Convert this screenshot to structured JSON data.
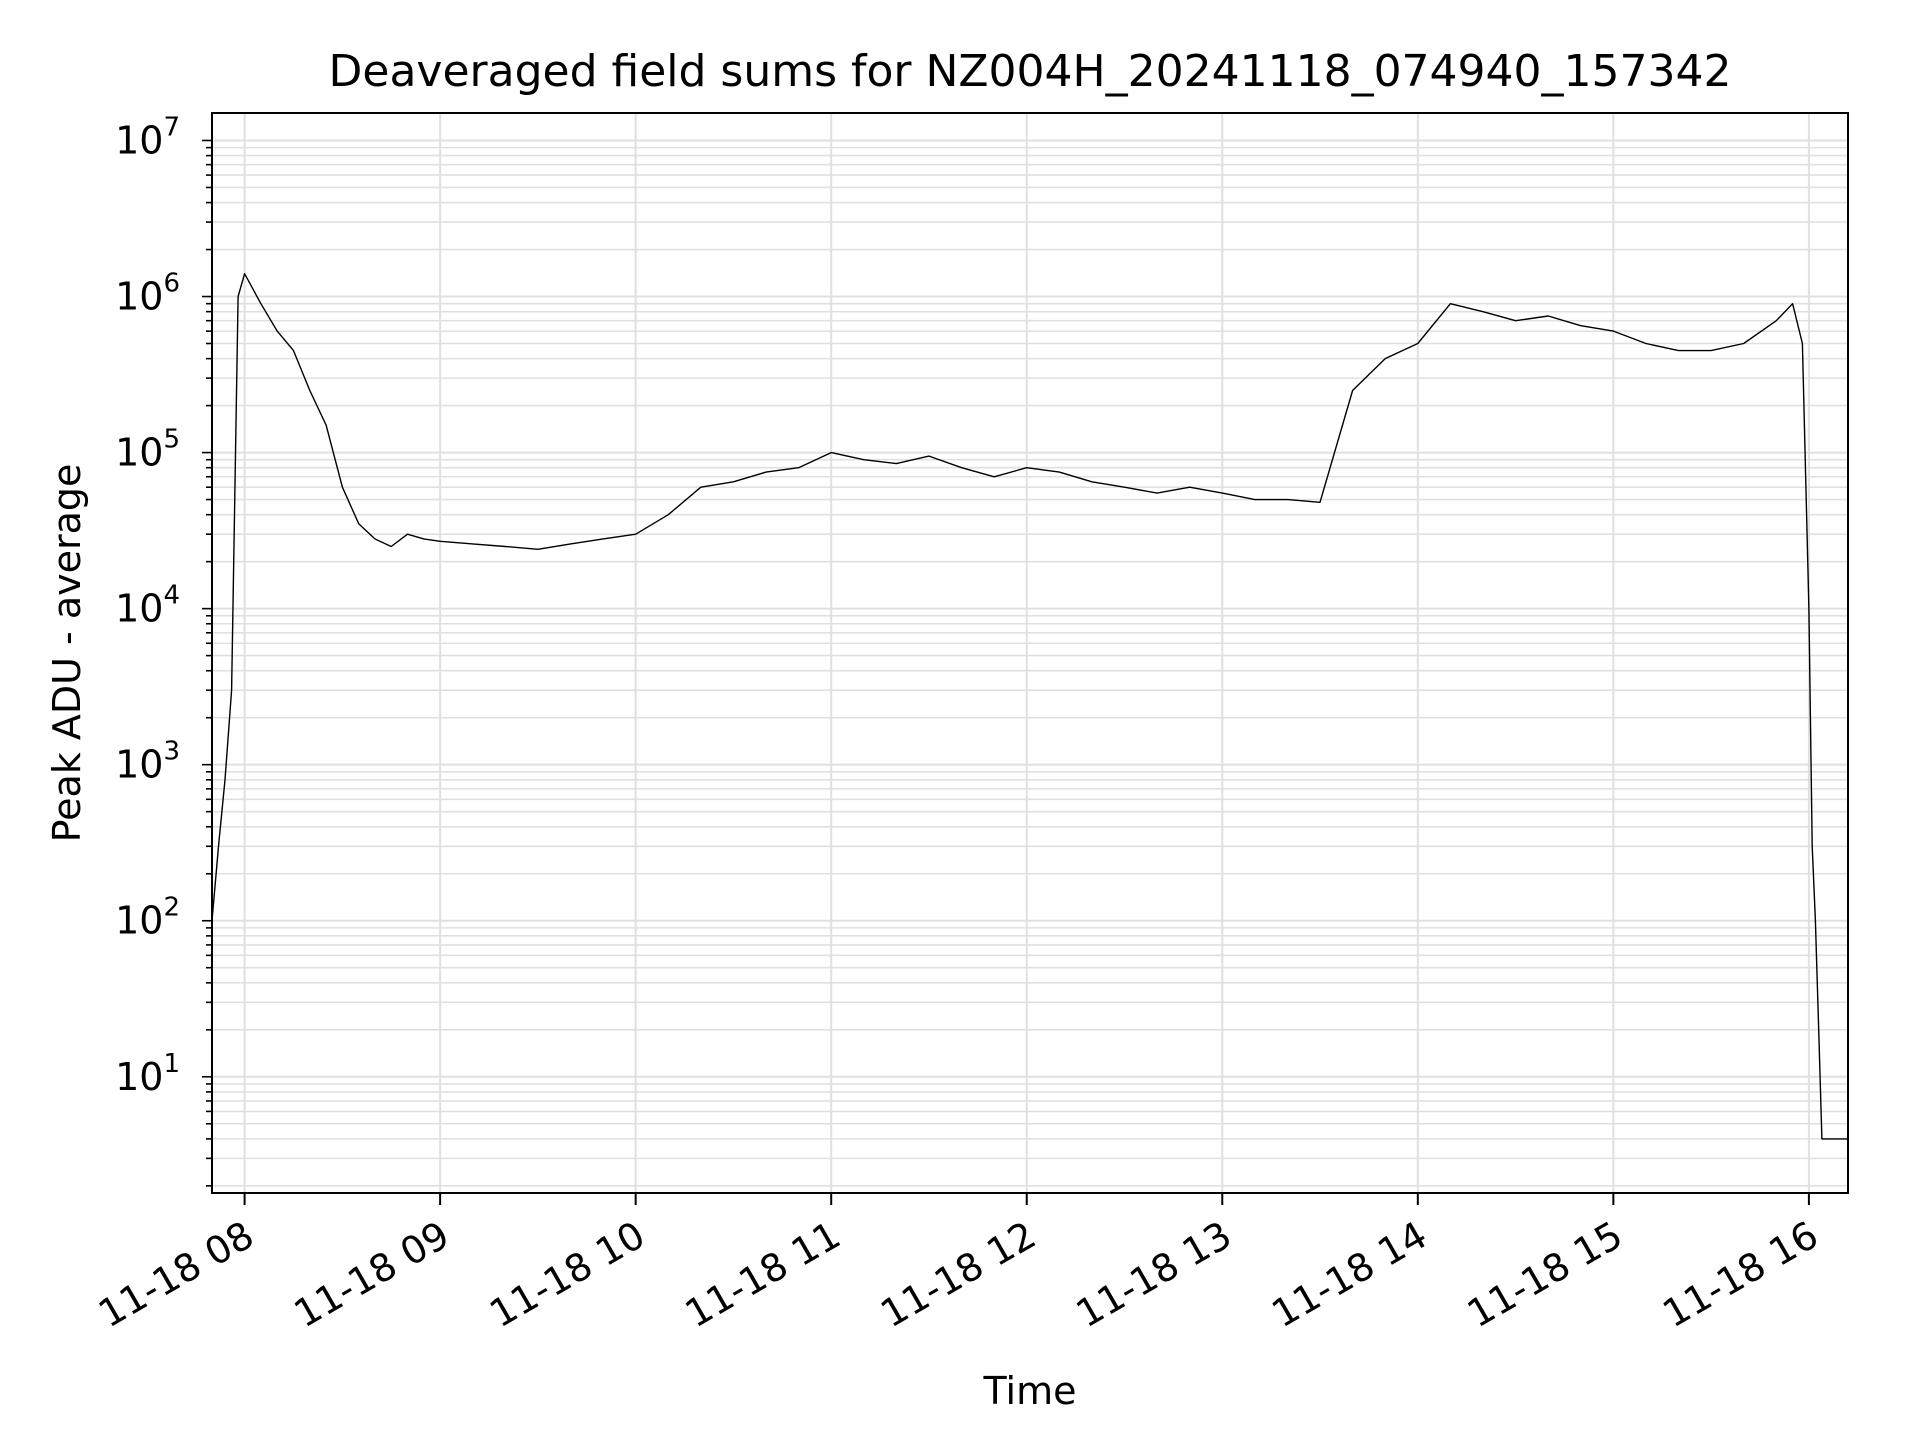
{
  "chart_data": {
    "type": "line",
    "title": "Deaveraged field sums for NZ004H_20241118_074940_157342",
    "xlabel": "Time",
    "ylabel": "Peak ADU - average",
    "yscale": "log",
    "ylim": [
      1.8,
      15000000
    ],
    "xlim": [
      "2024-11-18 07:50",
      "2024-11-18 16:12"
    ],
    "grid": "on (major and minor)",
    "line_color": "#000000",
    "grid_color": "#e0e0e0",
    "x_ticks": [
      {
        "value": "2024-11-18 08:00",
        "label": "11-18 08"
      },
      {
        "value": "2024-11-18 09:00",
        "label": "11-18 09"
      },
      {
        "value": "2024-11-18 10:00",
        "label": "11-18 10"
      },
      {
        "value": "2024-11-18 11:00",
        "label": "11-18 11"
      },
      {
        "value": "2024-11-18 12:00",
        "label": "11-18 12"
      },
      {
        "value": "2024-11-18 13:00",
        "label": "11-18 13"
      },
      {
        "value": "2024-11-18 14:00",
        "label": "11-18 14"
      },
      {
        "value": "2024-11-18 15:00",
        "label": "11-18 15"
      },
      {
        "value": "2024-11-18 16:00",
        "label": "11-18 16"
      }
    ],
    "y_ticks": [
      {
        "value": 10,
        "base": "10",
        "exp": "1"
      },
      {
        "value": 100,
        "base": "10",
        "exp": "2"
      },
      {
        "value": 1000,
        "base": "10",
        "exp": "3"
      },
      {
        "value": 10000,
        "base": "10",
        "exp": "4"
      },
      {
        "value": 100000,
        "base": "10",
        "exp": "5"
      },
      {
        "value": 1000000,
        "base": "10",
        "exp": "6"
      },
      {
        "value": 10000000,
        "base": "10",
        "exp": "7"
      }
    ],
    "series": [
      {
        "x": [
          "2024-11-18 07:50",
          "2024-11-18 07:52",
          "2024-11-18 07:54",
          "2024-11-18 07:56",
          "2024-11-18 07:58",
          "2024-11-18 08:00",
          "2024-11-18 08:05",
          "2024-11-18 08:10",
          "2024-11-18 08:15",
          "2024-11-18 08:20",
          "2024-11-18 08:25",
          "2024-11-18 08:30",
          "2024-11-18 08:35",
          "2024-11-18 08:40",
          "2024-11-18 08:45",
          "2024-11-18 08:50",
          "2024-11-18 08:55",
          "2024-11-18 09:00",
          "2024-11-18 09:10",
          "2024-11-18 09:20",
          "2024-11-18 09:30",
          "2024-11-18 09:40",
          "2024-11-18 09:50",
          "2024-11-18 10:00",
          "2024-11-18 10:10",
          "2024-11-18 10:20",
          "2024-11-18 10:30",
          "2024-11-18 10:40",
          "2024-11-18 10:50",
          "2024-11-18 11:00",
          "2024-11-18 11:10",
          "2024-11-18 11:20",
          "2024-11-18 11:30",
          "2024-11-18 11:40",
          "2024-11-18 11:50",
          "2024-11-18 12:00",
          "2024-11-18 12:10",
          "2024-11-18 12:20",
          "2024-11-18 12:30",
          "2024-11-18 12:40",
          "2024-11-18 12:50",
          "2024-11-18 13:00",
          "2024-11-18 13:10",
          "2024-11-18 13:20",
          "2024-11-18 13:30",
          "2024-11-18 13:40",
          "2024-11-18 13:50",
          "2024-11-18 14:00",
          "2024-11-18 14:10",
          "2024-11-18 14:20",
          "2024-11-18 14:30",
          "2024-11-18 14:40",
          "2024-11-18 14:50",
          "2024-11-18 15:00",
          "2024-11-18 15:10",
          "2024-11-18 15:20",
          "2024-11-18 15:30",
          "2024-11-18 15:40",
          "2024-11-18 15:50",
          "2024-11-18 15:55",
          "2024-11-18 15:58",
          "2024-11-18 16:00",
          "2024-11-18 16:01",
          "2024-11-18 16:02",
          "2024-11-18 16:03",
          "2024-11-18 16:04",
          "2024-11-18 16:12"
        ],
        "values": [
          100,
          300,
          800,
          3000,
          1000000,
          1400000,
          900000,
          600000,
          450000,
          250000,
          150000,
          60000,
          35000,
          28000,
          25000,
          30000,
          28000,
          27000,
          26000,
          25000,
          24000,
          26000,
          28000,
          30000,
          40000,
          60000,
          65000,
          75000,
          80000,
          100000,
          90000,
          85000,
          95000,
          80000,
          70000,
          80000,
          75000,
          65000,
          60000,
          55000,
          60000,
          55000,
          50000,
          50000,
          48000,
          250000,
          400000,
          500000,
          900000,
          800000,
          700000,
          750000,
          650000,
          600000,
          500000,
          450000,
          450000,
          500000,
          700000,
          900000,
          500000,
          10000,
          300,
          100,
          20,
          4,
          4
        ]
      }
    ]
  }
}
